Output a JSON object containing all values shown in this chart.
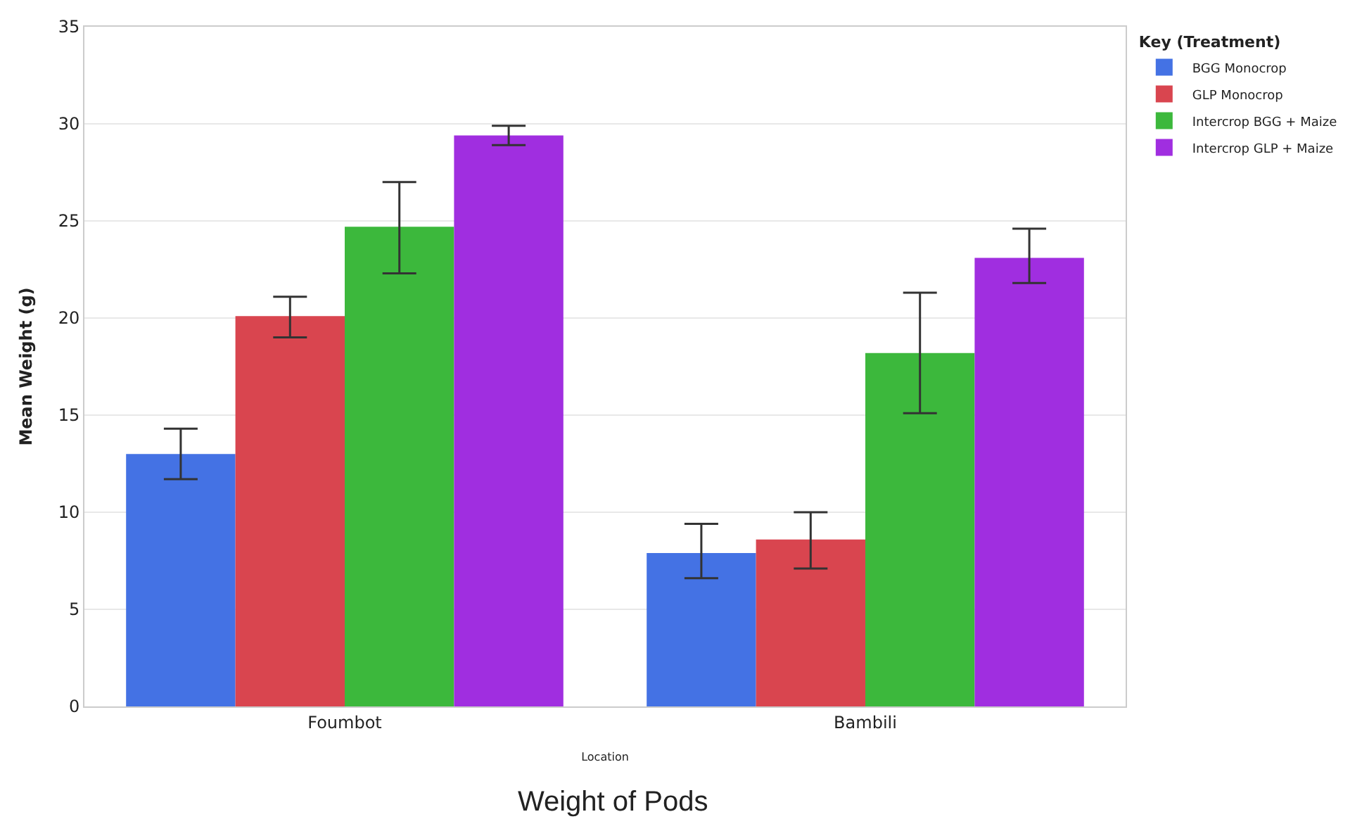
{
  "chart_data": {
    "type": "bar",
    "title": "Weight of Pods",
    "xlabel": "Location",
    "ylabel": "Mean Weight (g)",
    "legend_title": "Key (Treatment)",
    "categories": [
      "Foumbot",
      "Bambili"
    ],
    "series": [
      {
        "name": "BGG Monocrop",
        "color": "#4472e4",
        "values": [
          13.0,
          7.9
        ],
        "errors": [
          [
            11.7,
            14.3
          ],
          [
            6.6,
            9.4
          ]
        ]
      },
      {
        "name": "GLP Monocrop",
        "color": "#d9454f",
        "values": [
          20.1,
          8.6
        ],
        "errors": [
          [
            19.0,
            21.1
          ],
          [
            7.1,
            10.0
          ]
        ]
      },
      {
        "name": "Intercrop BGG + Maize",
        "color": "#3cb83c",
        "values": [
          24.7,
          18.2
        ],
        "errors": [
          [
            22.3,
            27.0
          ],
          [
            15.1,
            21.3
          ]
        ]
      },
      {
        "name": "Intercrop GLP + Maize",
        "color": "#a02ee0",
        "values": [
          29.4,
          23.1
        ],
        "errors": [
          [
            28.9,
            29.9
          ],
          [
            21.8,
            24.6
          ]
        ]
      }
    ],
    "ylim": [
      0,
      35
    ],
    "yticks": [
      0,
      5,
      10,
      15,
      20,
      25,
      30,
      35
    ],
    "grid": "y",
    "legend": "top right"
  }
}
